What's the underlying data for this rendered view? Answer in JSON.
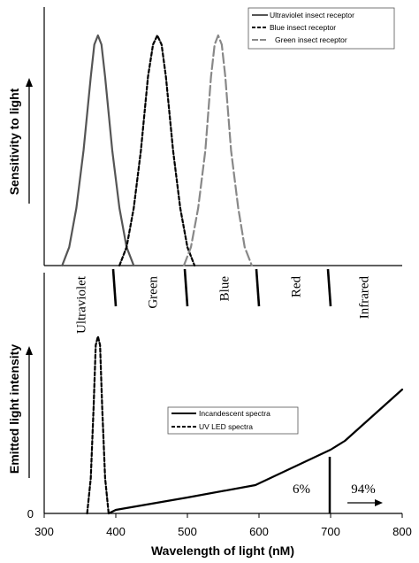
{
  "chart_data": [
    {
      "type": "line",
      "ylabel": "Sensitivity to light",
      "xlim": [
        300,
        800
      ],
      "grid": false,
      "legend_position": "top-right",
      "series": [
        {
          "name": "Ultraviolet insect receptor",
          "color": "#555555",
          "dash": "solid",
          "x": [
            325,
            335,
            345,
            355,
            365,
            370,
            375,
            380,
            385,
            395,
            405,
            415,
            425
          ],
          "y": [
            0,
            0.08,
            0.25,
            0.5,
            0.82,
            0.96,
            1.0,
            0.96,
            0.82,
            0.5,
            0.25,
            0.08,
            0
          ]
        },
        {
          "name": "Blue insect receptor",
          "color": "#000000",
          "dash": "dashed",
          "x": [
            405,
            415,
            425,
            435,
            445,
            452,
            458,
            464,
            470,
            480,
            490,
            500,
            510
          ],
          "y": [
            0,
            0.08,
            0.25,
            0.5,
            0.82,
            0.96,
            1.0,
            0.96,
            0.82,
            0.5,
            0.25,
            0.08,
            0
          ]
        },
        {
          "name": "Green insect receptor",
          "color": "#888888",
          "dash": "longdash",
          "x": [
            495,
            505,
            515,
            525,
            533,
            538,
            543,
            548,
            553,
            561,
            571,
            580,
            590
          ],
          "y": [
            0,
            0.08,
            0.25,
            0.5,
            0.82,
            0.96,
            1.0,
            0.96,
            0.82,
            0.5,
            0.25,
            0.08,
            0
          ]
        }
      ]
    },
    {
      "type": "line",
      "xlabel": "Wavelength of light (nM)",
      "ylabel": "Emitted light intensity",
      "xlim": [
        300,
        800
      ],
      "xticks": [
        "300",
        "400",
        "500",
        "600",
        "700",
        "800"
      ],
      "yticks": [
        "0"
      ],
      "grid": false,
      "legend_position": "center-right",
      "series": [
        {
          "name": "Incandescent spectra",
          "color": "#000000",
          "dash": "solid",
          "x": [
            390,
            400,
            500,
            595,
            700,
            720,
            800
          ],
          "y": [
            0,
            0.02,
            0.09,
            0.16,
            0.36,
            0.41,
            0.7
          ]
        },
        {
          "name": "UV LED spectra",
          "color": "#000000",
          "dash": "dashed",
          "x": [
            360,
            365,
            369,
            372,
            375,
            378,
            381,
            385,
            390
          ],
          "y": [
            0,
            0.2,
            0.6,
            0.95,
            1.0,
            0.95,
            0.6,
            0.2,
            0
          ]
        }
      ],
      "annotations": [
        {
          "text": "6%",
          "x": 685
        },
        {
          "text": "94%",
          "x": 745,
          "arrow": "right"
        }
      ]
    }
  ],
  "bands": {
    "boundaries": [
      400,
      500,
      600,
      700
    ],
    "labels": [
      {
        "text": "Ultraviolet",
        "x": 350
      },
      {
        "text": "Green",
        "x": 450
      },
      {
        "text": "Blue",
        "x": 550
      },
      {
        "text": "Red",
        "x": 650
      },
      {
        "text": "Infrared",
        "x": 745
      }
    ]
  }
}
